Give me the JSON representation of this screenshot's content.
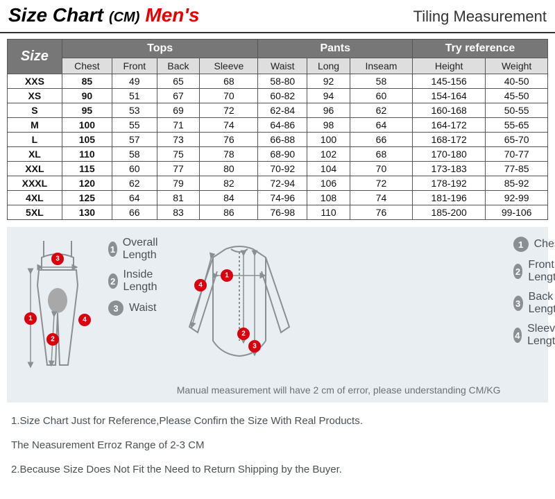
{
  "header": {
    "title": "Size Chart",
    "unit": "(CM)",
    "gender": "Men's",
    "right": "Tiling Measurement",
    "border_color": "#333333",
    "gender_color": "#e60000"
  },
  "table": {
    "header_bg": "#777777",
    "header_fg": "#ffffff",
    "subheader_bg": "#dedede",
    "border_color": "#555555",
    "groups": [
      {
        "label": "Size",
        "rowspan": 2,
        "class": "size-th"
      },
      {
        "label": "Tops",
        "colspan": 4
      },
      {
        "label": "Pants",
        "colspan": 3
      },
      {
        "label": "Try reference",
        "colspan": 2
      }
    ],
    "columns": [
      "Chest",
      "Front",
      "Back",
      "Sleeve",
      "Waist",
      "Long",
      "Inseam",
      "Height",
      "Weight"
    ],
    "bold_columns": [
      0
    ],
    "rows": [
      [
        "XXS",
        "85",
        "49",
        "65",
        "68",
        "58-80",
        "92",
        "58",
        "145-156",
        "40-50"
      ],
      [
        "XS",
        "90",
        "51",
        "67",
        "70",
        "60-82",
        "94",
        "60",
        "154-164",
        "45-50"
      ],
      [
        "S",
        "95",
        "53",
        "69",
        "72",
        "62-84",
        "96",
        "62",
        "160-168",
        "50-55"
      ],
      [
        "M",
        "100",
        "55",
        "71",
        "74",
        "64-86",
        "98",
        "64",
        "164-172",
        "55-65"
      ],
      [
        "L",
        "105",
        "57",
        "73",
        "76",
        "66-88",
        "100",
        "66",
        "168-172",
        "65-70"
      ],
      [
        "XL",
        "110",
        "58",
        "75",
        "78",
        "68-90",
        "102",
        "68",
        "170-180",
        "70-77"
      ],
      [
        "XXL",
        "115",
        "60",
        "77",
        "80",
        "70-92",
        "104",
        "70",
        "173-183",
        "77-85"
      ],
      [
        "XXXL",
        "120",
        "62",
        "79",
        "82",
        "72-94",
        "106",
        "72",
        "178-192",
        "85-92"
      ],
      [
        "4XL",
        "125",
        "64",
        "81",
        "84",
        "74-96",
        "108",
        "74",
        "181-196",
        "92-99"
      ],
      [
        "5XL",
        "130",
        "66",
        "83",
        "86",
        "76-98",
        "110",
        "76",
        "185-200",
        "99-106"
      ]
    ]
  },
  "diagram": {
    "bg_color": "#e9eef2",
    "badge_gray": "#8a8f94",
    "badge_red": "#d9000d",
    "outline_color": "#8a8f94",
    "pants_legend": [
      {
        "num": "1",
        "label": "Overall Length"
      },
      {
        "num": "2",
        "label": "Inside Length"
      },
      {
        "num": "3",
        "label": "Waist"
      }
    ],
    "tops_legend": [
      {
        "num": "1",
        "label": "Chest"
      },
      {
        "num": "2",
        "label": "Front Length"
      },
      {
        "num": "3",
        "label": "Back Length"
      },
      {
        "num": "4",
        "label": "Sleeve Length"
      }
    ],
    "note": "Manual measurement will have 2 cm of error, please understanding  CM/KG"
  },
  "footnotes": {
    "lines": [
      "1.Size Chart Just for Reference,Please Confirn the Size With Real Products.",
      "The Neasurement Erroz Range of 2-3 CM",
      "2.Because Size Does Not Fit the Need to Return Shipping by the Buyer."
    ],
    "text_color": "#4a5056"
  }
}
